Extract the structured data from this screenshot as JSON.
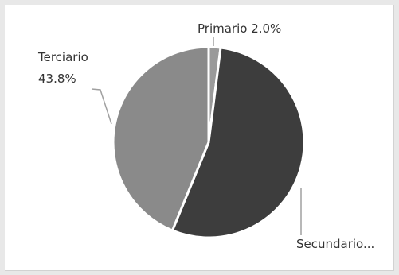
{
  "chart_data": {
    "type": "pie",
    "title": "",
    "slices": [
      {
        "label": "Primario",
        "value": 2.0,
        "label_text": "Primario 2.0%",
        "color": "#9a9a9a"
      },
      {
        "label": "Secundario",
        "value": 54.2,
        "label_text": "Secundario...",
        "color": "#3d3d3d"
      },
      {
        "label": "Terciario",
        "value": 43.8,
        "label_text": "Terciario",
        "value_text": "43.8%",
        "color": "#8a8a8a"
      }
    ],
    "legend": "none"
  },
  "colors": {
    "leader_line": "#a0a0a0",
    "slice_separator": "#ffffff"
  }
}
